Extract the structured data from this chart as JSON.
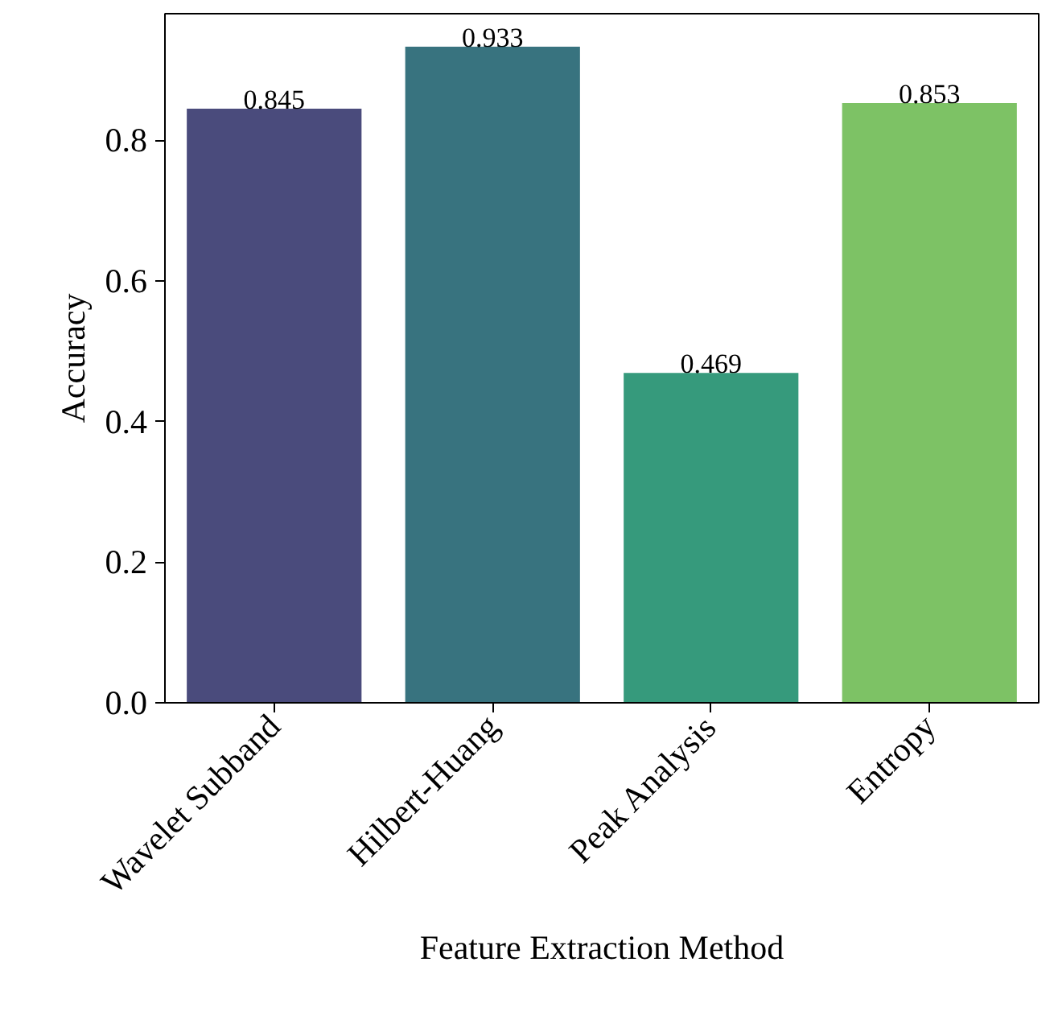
{
  "chart_data": {
    "type": "bar",
    "xlabel": "Feature Extraction Method",
    "ylabel": "Accuracy",
    "categories": [
      "Wavelet Subband",
      "Hilbert-Huang",
      "Peak Analysis",
      "Entropy"
    ],
    "values": [
      0.845,
      0.933,
      0.469,
      0.853
    ],
    "colors": [
      "#4a4b7c",
      "#38737f",
      "#369a7c",
      "#7dc265"
    ],
    "ylim": [
      0,
      0.98
    ],
    "yticks": [
      "0.0",
      "0.2",
      "0.4",
      "0.6",
      "0.8"
    ],
    "data_labels": true,
    "grid": false
  }
}
